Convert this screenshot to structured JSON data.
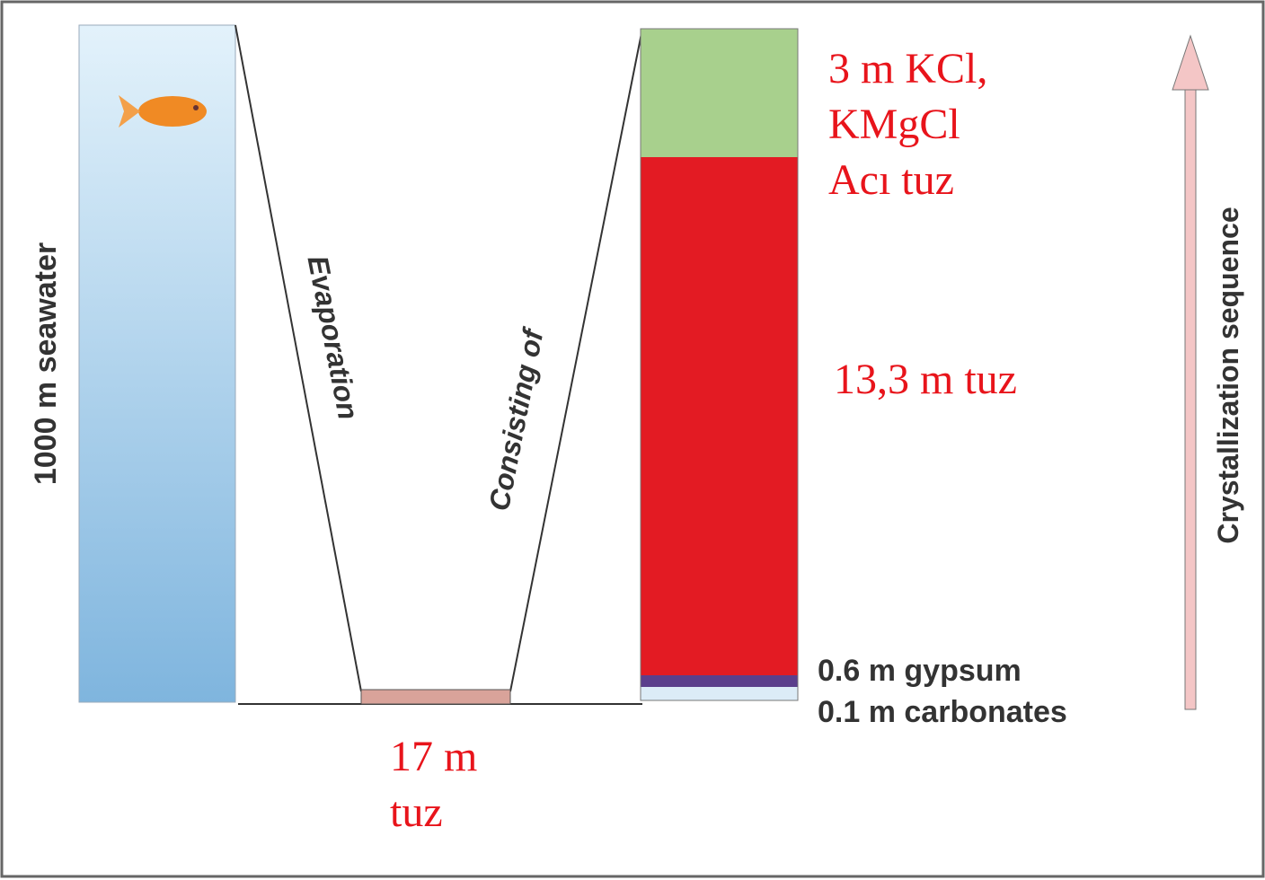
{
  "left_column": {
    "label": "1000 m seawater"
  },
  "arrows": {
    "evaporation": "Evaporation",
    "consisting": "Consisting of"
  },
  "bottom_label": {
    "lines": [
      "17 m",
      "tuz"
    ]
  },
  "right_column": {
    "top_label": [
      "3 m KCl,",
      "KMgCl",
      "Acı tuz"
    ],
    "middle_label": "13,3 m tuz",
    "gypsum_label": "0.6 m gypsum",
    "carbonates_label": "0.1 m carbonates"
  },
  "sequence": {
    "label": "Crystallization sequence"
  }
}
